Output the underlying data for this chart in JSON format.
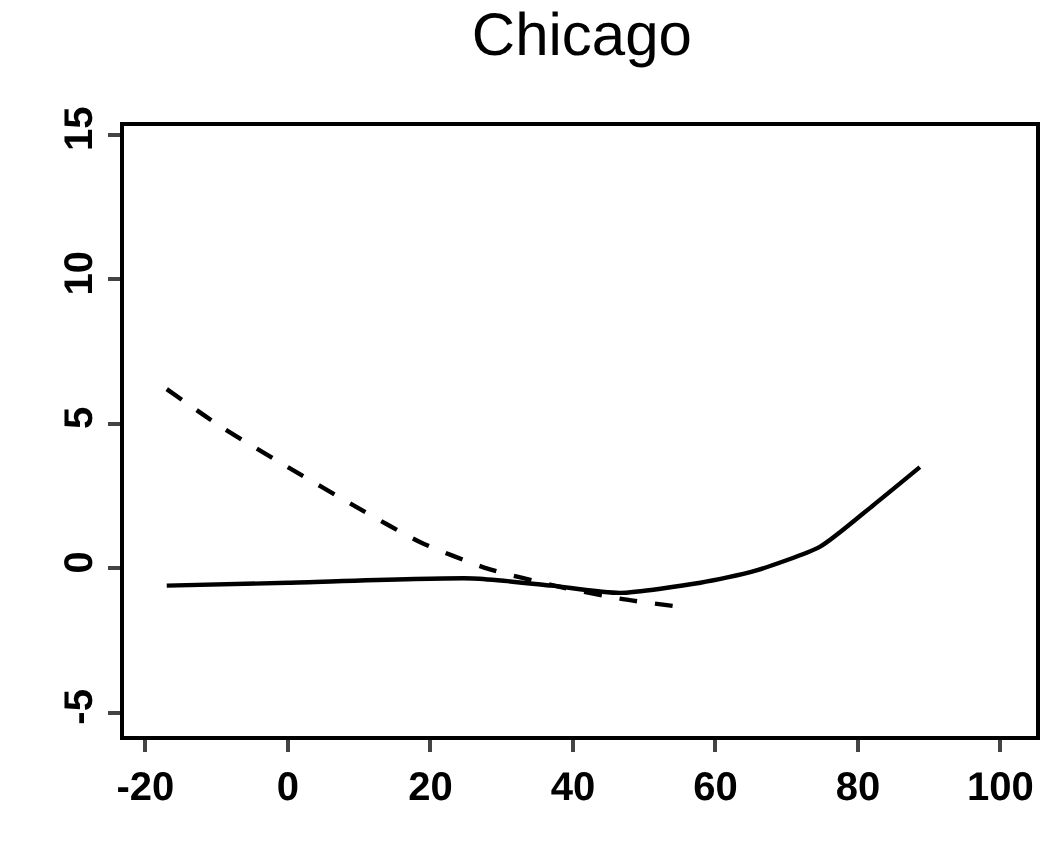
{
  "chart_data": {
    "type": "line",
    "title": "Chicago",
    "xlim": [
      -23,
      105
    ],
    "xticks": [
      -20,
      0,
      20,
      40,
      60,
      80,
      100
    ],
    "ylim": [
      -5.8,
      15.3
    ],
    "yticks": [
      -5,
      0,
      5,
      10,
      15
    ],
    "grid": false,
    "marker": "none",
    "series": [
      {
        "color": "#000000",
        "line_style": "solid",
        "x": [
          -17,
          0,
          26,
          37,
          46.6,
          57.9,
          65.4,
          74.7,
          82,
          88.7
        ],
        "values": [
          -0.6,
          -0.5,
          -0.35,
          -0.6,
          -0.85,
          -0.5,
          -0.1,
          0.75,
          2.15,
          3.5
        ]
      },
      {
        "color": "#000000",
        "line_style": "dashed",
        "x": [
          -17,
          -9.4,
          0,
          9.4,
          18.6,
          27.9,
          37.4,
          46.6,
          54
        ],
        "values": [
          6.2,
          4.9,
          3.5,
          2.15,
          0.9,
          0,
          -0.6,
          -1.05,
          -1.3
        ]
      }
    ]
  }
}
